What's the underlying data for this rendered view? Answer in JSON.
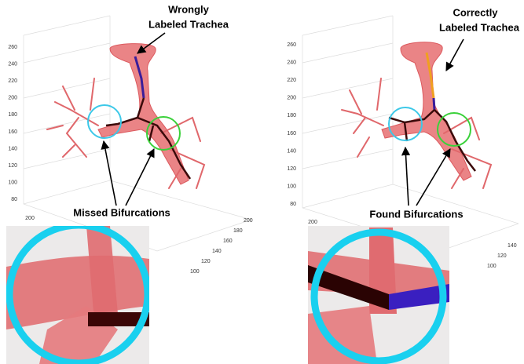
{
  "panels": [
    {
      "title_lines": [
        "Wrongly",
        "Labeled Trachea"
      ],
      "caption": "Missed Bifurcations",
      "z_ticks": [
        260,
        240,
        220,
        200,
        180,
        160,
        140,
        120,
        100,
        80
      ],
      "y_ticks": [
        200
      ],
      "x_ticks": [
        200,
        180,
        160,
        140,
        120,
        100
      ]
    },
    {
      "title_lines": [
        "Correctly",
        "Labeled Trachea"
      ],
      "caption": "Found Bifurcations",
      "z_ticks": [
        260,
        240,
        220,
        200,
        180,
        160,
        140,
        120,
        100,
        80
      ],
      "y_ticks": [
        200
      ],
      "x_ticks": [
        140,
        120,
        100
      ]
    }
  ]
}
